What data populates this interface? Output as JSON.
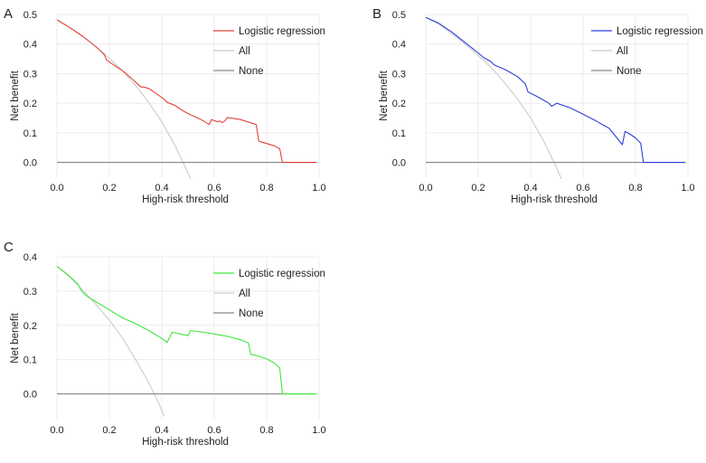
{
  "chart_data": [
    {
      "panel": "A",
      "type": "line",
      "xlabel": "High-risk threshold",
      "ylabel": "Net benefit",
      "xlim": [
        0,
        1.0
      ],
      "ylim": [
        -0.05,
        0.5
      ],
      "xticks": [
        "0.0",
        "0.2",
        "0.4",
        "0.6",
        "0.8",
        "1.0"
      ],
      "yticks": [
        "0.0",
        "0.1",
        "0.2",
        "0.3",
        "0.4",
        "0.5"
      ],
      "grid": true,
      "legend": "top-right",
      "series": [
        {
          "name": "Logistic regression",
          "color": "#e0403a",
          "x": [
            0.0,
            0.05,
            0.1,
            0.15,
            0.18,
            0.19,
            0.25,
            0.29,
            0.32,
            0.33,
            0.35,
            0.38,
            0.41,
            0.42,
            0.45,
            0.48,
            0.5,
            0.55,
            0.58,
            0.59,
            0.61,
            0.62,
            0.63,
            0.64,
            0.65,
            0.7,
            0.76,
            0.77,
            0.8,
            0.83,
            0.85,
            0.86,
            0.9,
            0.95,
            0.99
          ],
          "y": [
            0.482,
            0.455,
            0.425,
            0.39,
            0.365,
            0.345,
            0.31,
            0.28,
            0.255,
            0.255,
            0.25,
            0.232,
            0.213,
            0.203,
            0.193,
            0.175,
            0.165,
            0.145,
            0.128,
            0.145,
            0.138,
            0.14,
            0.135,
            0.14,
            0.152,
            0.145,
            0.128,
            0.072,
            0.064,
            0.056,
            0.046,
            0.0,
            0.0,
            0.0,
            0.0
          ]
        },
        {
          "name": "All",
          "color": "#cccccc",
          "x": [
            0.0,
            0.05,
            0.1,
            0.15,
            0.2,
            0.25,
            0.3,
            0.35,
            0.4,
            0.45,
            0.48,
            0.5,
            0.51
          ],
          "y": [
            0.482,
            0.455,
            0.425,
            0.39,
            0.352,
            0.31,
            0.26,
            0.203,
            0.137,
            0.058,
            0.003,
            -0.036,
            -0.057
          ]
        },
        {
          "name": "None",
          "color": "#888888",
          "x": [
            0.0,
            0.99
          ],
          "y": [
            0.0,
            0.0
          ]
        }
      ]
    },
    {
      "panel": "B",
      "type": "line",
      "xlabel": "High-risk threshold",
      "ylabel": "Net benefit",
      "xlim": [
        0,
        1.0
      ],
      "ylim": [
        -0.05,
        0.5
      ],
      "xticks": [
        "0.0",
        "0.2",
        "0.4",
        "0.6",
        "0.8",
        "1.0"
      ],
      "yticks": [
        "0.0",
        "0.1",
        "0.2",
        "0.3",
        "0.4",
        "0.5"
      ],
      "grid": true,
      "legend": "top-right",
      "series": [
        {
          "name": "Logistic regression",
          "color": "#2a3fd8",
          "x": [
            0.0,
            0.05,
            0.1,
            0.15,
            0.2,
            0.22,
            0.25,
            0.26,
            0.3,
            0.35,
            0.38,
            0.39,
            0.42,
            0.45,
            0.47,
            0.48,
            0.5,
            0.55,
            0.6,
            0.65,
            0.7,
            0.75,
            0.76,
            0.78,
            0.8,
            0.82,
            0.83,
            0.9,
            0.99
          ],
          "y": [
            0.49,
            0.47,
            0.44,
            0.405,
            0.37,
            0.355,
            0.34,
            0.33,
            0.315,
            0.29,
            0.265,
            0.238,
            0.225,
            0.21,
            0.2,
            0.19,
            0.2,
            0.185,
            0.163,
            0.14,
            0.115,
            0.06,
            0.105,
            0.095,
            0.083,
            0.065,
            0.0,
            0.0,
            0.0
          ]
        },
        {
          "name": "All",
          "color": "#cccccc",
          "x": [
            0.0,
            0.05,
            0.1,
            0.15,
            0.2,
            0.25,
            0.3,
            0.35,
            0.4,
            0.45,
            0.5,
            0.52
          ],
          "y": [
            0.49,
            0.467,
            0.434,
            0.4,
            0.362,
            0.32,
            0.27,
            0.215,
            0.15,
            0.072,
            -0.02,
            -0.062
          ]
        },
        {
          "name": "None",
          "color": "#888888",
          "x": [
            0.0,
            0.99
          ],
          "y": [
            0.0,
            0.0
          ]
        }
      ]
    },
    {
      "panel": "C",
      "type": "line",
      "xlabel": "High-risk threshold",
      "ylabel": "Net benefit",
      "xlim": [
        0,
        1.0
      ],
      "ylim": [
        -0.075,
        0.4
      ],
      "xticks": [
        "0.0",
        "0.2",
        "0.4",
        "0.6",
        "0.8",
        "1.0"
      ],
      "yticks": [
        "0.0",
        "0.1",
        "0.2",
        "0.3",
        "0.4"
      ],
      "grid": true,
      "legend": "top-right",
      "series": [
        {
          "name": "Logistic regression",
          "color": "#3ee63e",
          "x": [
            0.0,
            0.03,
            0.06,
            0.08,
            0.09,
            0.1,
            0.12,
            0.15,
            0.2,
            0.25,
            0.27,
            0.3,
            0.35,
            0.4,
            0.42,
            0.44,
            0.47,
            0.5,
            0.51,
            0.55,
            0.6,
            0.65,
            0.7,
            0.73,
            0.74,
            0.76,
            0.8,
            0.83,
            0.85,
            0.86,
            0.9,
            0.95,
            0.99
          ],
          "y": [
            0.372,
            0.355,
            0.335,
            0.32,
            0.305,
            0.295,
            0.282,
            0.268,
            0.245,
            0.222,
            0.215,
            0.205,
            0.185,
            0.162,
            0.15,
            0.18,
            0.175,
            0.17,
            0.185,
            0.181,
            0.175,
            0.168,
            0.158,
            0.149,
            0.115,
            0.112,
            0.102,
            0.09,
            0.075,
            0.0,
            0.0,
            0.0,
            0.0
          ]
        },
        {
          "name": "All",
          "color": "#cccccc",
          "x": [
            0.0,
            0.05,
            0.1,
            0.15,
            0.2,
            0.25,
            0.3,
            0.35,
            0.38,
            0.4,
            0.41
          ],
          "y": [
            0.372,
            0.34,
            0.302,
            0.26,
            0.215,
            0.163,
            0.1,
            0.033,
            -0.014,
            -0.048,
            -0.066
          ]
        },
        {
          "name": "None",
          "color": "#888888",
          "x": [
            0.0,
            0.99
          ],
          "y": [
            0.0,
            0.0
          ]
        }
      ]
    }
  ]
}
